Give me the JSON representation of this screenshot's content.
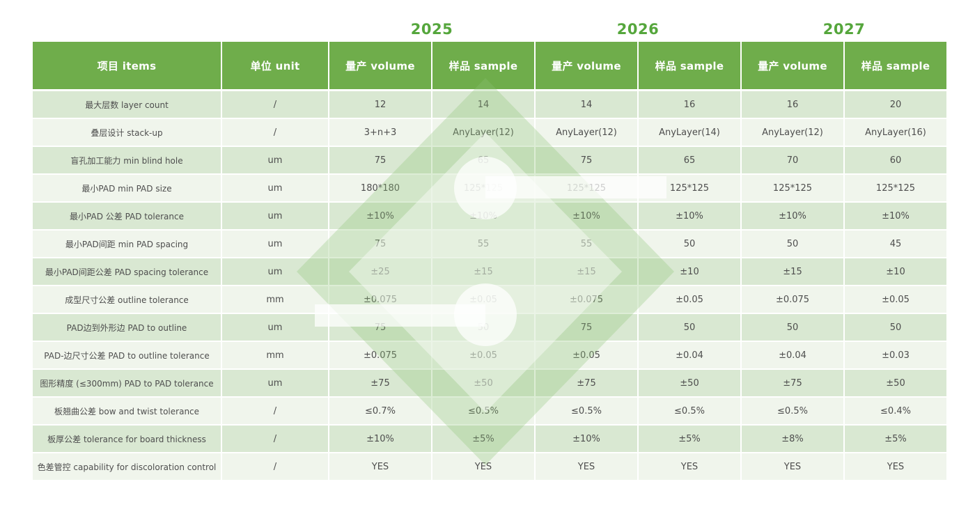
{
  "years": [
    "2025",
    "2026",
    "2027"
  ],
  "table": {
    "headers": {
      "items": "项目 items",
      "unit": "单位 unit",
      "volume": "量产 volume",
      "sample": "样品 sample"
    },
    "rows": [
      {
        "item": "最大层数 layer count",
        "unit": "/",
        "values": [
          "12",
          "14",
          "14",
          "16",
          "16",
          "20"
        ]
      },
      {
        "item": "叠层设计 stack-up",
        "unit": "/",
        "values": [
          "3+n+3",
          "AnyLayer(12)",
          "AnyLayer(12)",
          "AnyLayer(14)",
          "AnyLayer(12)",
          "AnyLayer(16)"
        ]
      },
      {
        "item": "盲孔加工能力 min blind hole",
        "unit": "um",
        "values": [
          "75",
          "65",
          "75",
          "65",
          "70",
          "60"
        ]
      },
      {
        "item": "最小PAD min PAD size",
        "unit": "um",
        "values": [
          "180*180",
          "125*125",
          "125*125",
          "125*125",
          "125*125",
          "125*125"
        ]
      },
      {
        "item": "最小PAD 公差 PAD tolerance",
        "unit": "um",
        "values": [
          "±10%",
          "±10%",
          "±10%",
          "±10%",
          "±10%",
          "±10%"
        ]
      },
      {
        "item": "最小PAD间距 min PAD spacing",
        "unit": "um",
        "values": [
          "75",
          "55",
          "55",
          "50",
          "50",
          "45"
        ]
      },
      {
        "item": "最小PAD间距公差 PAD spacing tolerance",
        "unit": "um",
        "values": [
          "±25",
          "±15",
          "±15",
          "±10",
          "±15",
          "±10"
        ]
      },
      {
        "item": "成型尺寸公差 outline tolerance",
        "unit": "mm",
        "values": [
          "±0.075",
          "±0.05",
          "±0.075",
          "±0.05",
          "±0.075",
          "±0.05"
        ]
      },
      {
        "item": "PAD边到外形边 PAD to outline",
        "unit": "um",
        "values": [
          "75",
          "50",
          "75",
          "50",
          "50",
          "50"
        ]
      },
      {
        "item": "PAD-边尺寸公差 PAD to outline tolerance",
        "unit": "mm",
        "values": [
          "±0.075",
          "±0.05",
          "±0.05",
          "±0.04",
          "±0.04",
          "±0.03"
        ]
      },
      {
        "item": "图形精度 (≤300mm)  PAD to PAD tolerance",
        "unit": "um",
        "values": [
          "±75",
          "±50",
          "±75",
          "±50",
          "±75",
          "±50"
        ]
      },
      {
        "item": "板翘曲公差 bow and twist tolerance",
        "unit": "/",
        "values": [
          "≤0.7%",
          "≤0.5%",
          "≤0.5%",
          "≤0.5%",
          "≤0.5%",
          "≤0.4%"
        ]
      },
      {
        "item": "板厚公差 tolerance for board thickness",
        "unit": "/",
        "values": [
          "±10%",
          "±5%",
          "±10%",
          "±5%",
          "±8%",
          "±5%"
        ]
      },
      {
        "item": "色差管控 capability for discoloration control",
        "unit": "/",
        "values": [
          "YES",
          "YES",
          "YES",
          "YES",
          "YES",
          "YES"
        ]
      }
    ]
  },
  "colors": {
    "header_green": "#6fad4b",
    "year_green": "#55a63c",
    "row_green": "#d9e8d2",
    "row_light": "#f0f5ec",
    "text_gray": "#4e4e4e",
    "watermark_green": "#8dc276"
  }
}
